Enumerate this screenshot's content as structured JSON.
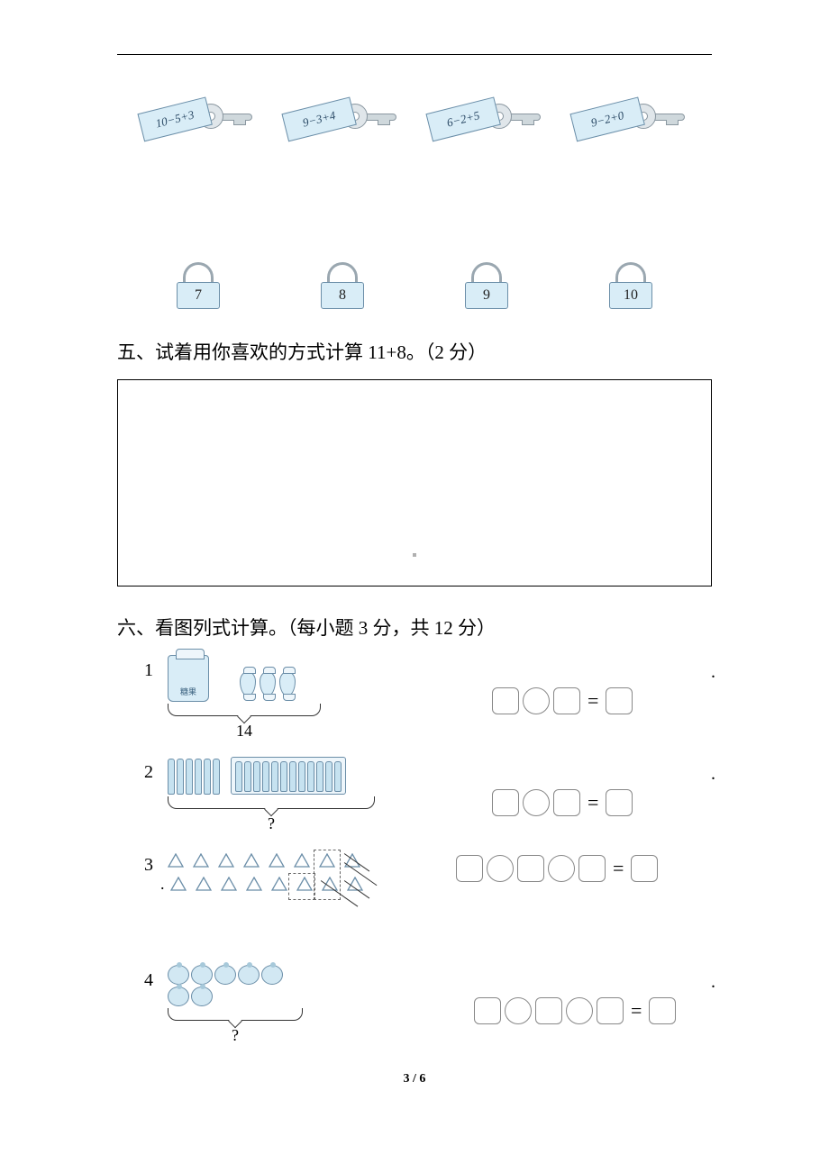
{
  "keys": [
    {
      "expr": "10−5+3"
    },
    {
      "expr": "9−3+4"
    },
    {
      "expr": "6−2+5"
    },
    {
      "expr": "9−2+0"
    }
  ],
  "locks": [
    {
      "num": "7"
    },
    {
      "num": "8"
    },
    {
      "num": "9"
    },
    {
      "num": "10"
    }
  ],
  "section5": {
    "heading": "五、试着用你喜欢的方式计算 11+8。（2 分）"
  },
  "section6": {
    "heading": "六、看图列式计算。（每小题 3 分，共 12 分）",
    "problems": {
      "p1": {
        "num": "1",
        "bag_label": "糖果",
        "brace_label": "14",
        "candy_count": 3
      },
      "p2": {
        "num": "2",
        "brace_label": "?",
        "loose_count": 6,
        "box_count": 12
      },
      "p3": {
        "num": "3",
        "row1_count": 8,
        "row2_count": 8
      },
      "p4": {
        "num": "4",
        "brace_label": "?",
        "berry_count": 7
      }
    }
  },
  "equals": "=",
  "page_num": "3 / 6",
  "colors": {
    "light_blue": "#d9edf7",
    "blue_border": "#6b8ea8",
    "grey_metal": "#cfd8dc",
    "box_border": "#888"
  }
}
